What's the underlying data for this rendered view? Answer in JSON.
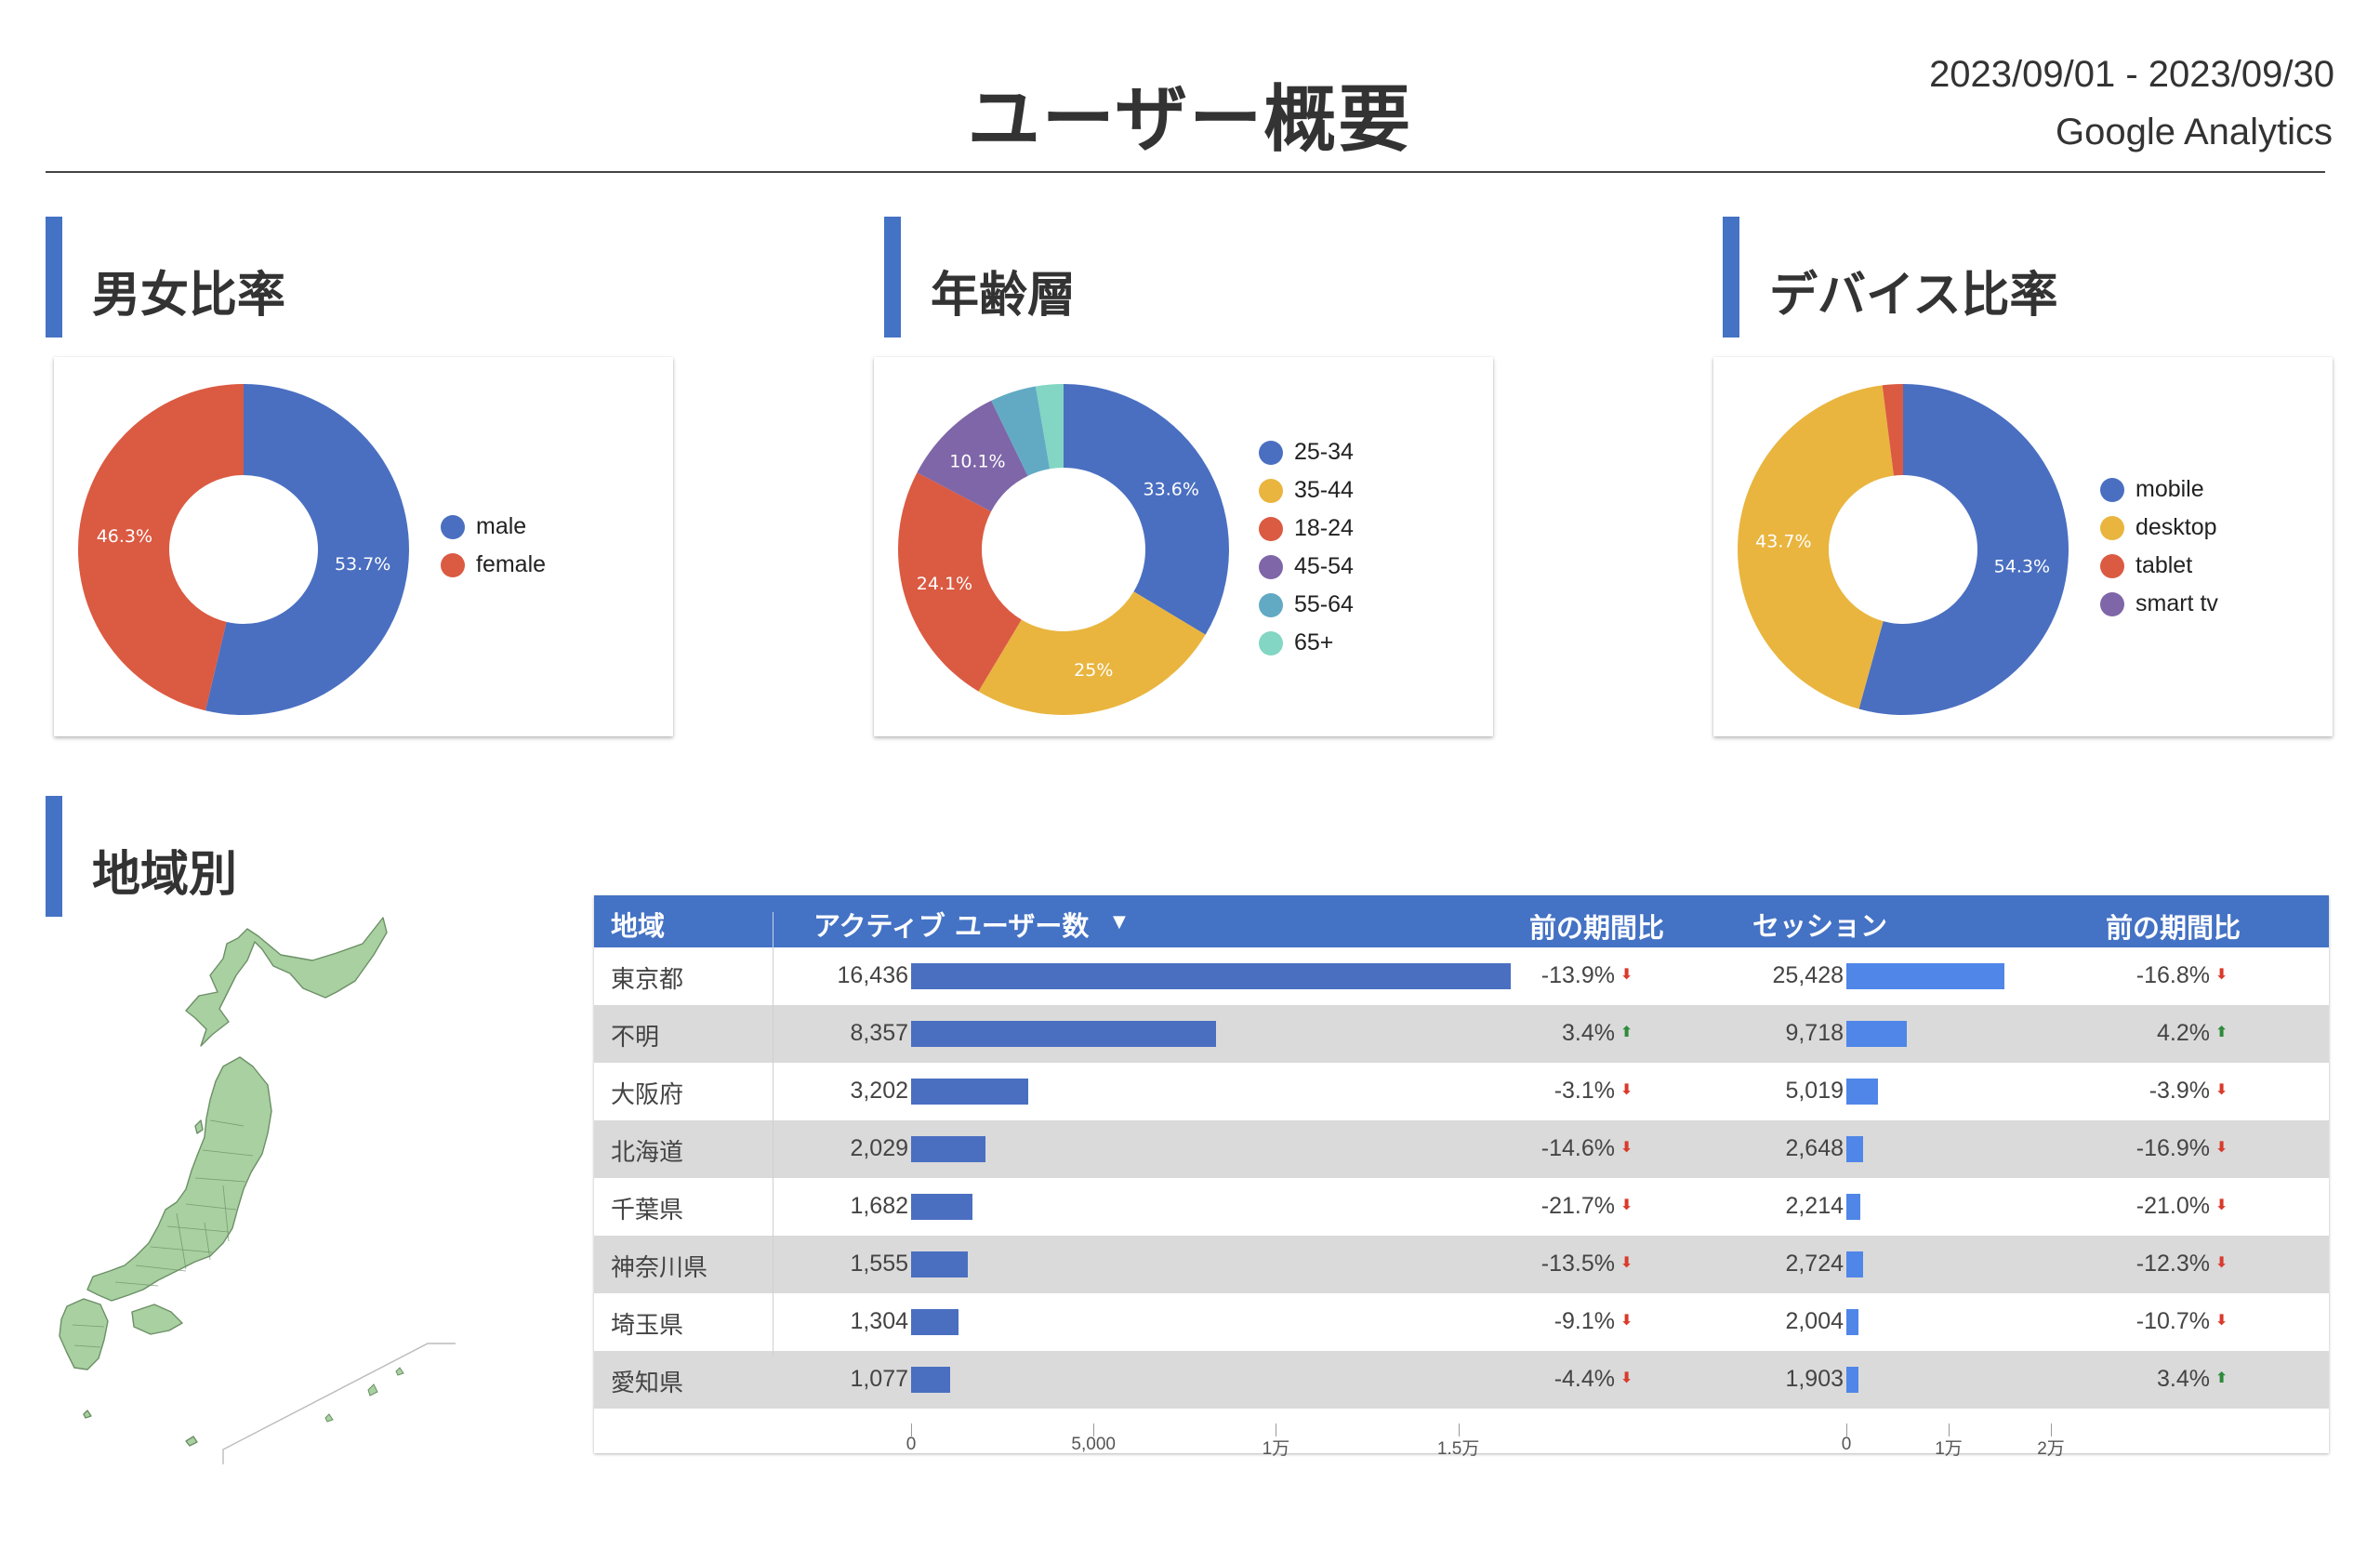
{
  "header": {
    "title": "ユーザー概要",
    "date_range": "2023/09/01 - 2023/09/30",
    "data_source": "Google Analytics"
  },
  "sections": {
    "gender": "男女比率",
    "age": "年齢層",
    "device": "デバイス比率",
    "region": "地域別"
  },
  "chart_data": [
    {
      "type": "pie",
      "title": "男女比率",
      "labels": [
        "male",
        "female"
      ],
      "values": [
        53.7,
        46.3
      ],
      "value_labels": [
        "53.7%",
        "46.3%"
      ],
      "colors": [
        "#4a6fc1",
        "#db5a42"
      ],
      "legend": "right"
    },
    {
      "type": "pie",
      "title": "年齢層",
      "labels": [
        "25-34",
        "35-44",
        "18-24",
        "45-54",
        "55-64",
        "65+"
      ],
      "values": [
        33.6,
        25.0,
        24.1,
        10.1,
        4.5,
        2.7
      ],
      "value_labels": [
        "33.6%",
        "25%",
        "24.1%",
        "10.1%",
        "",
        ""
      ],
      "colors": [
        "#4a6fc1",
        "#e9b53f",
        "#db5a42",
        "#7e66a8",
        "#62aac4",
        "#82d6c3"
      ],
      "legend": "right"
    },
    {
      "type": "pie",
      "title": "デバイス比率",
      "labels": [
        "mobile",
        "desktop",
        "tablet",
        "smart tv"
      ],
      "values": [
        54.3,
        43.7,
        2.0,
        0.0
      ],
      "value_labels": [
        "54.3%",
        "43.7%",
        "",
        ""
      ],
      "colors": [
        "#4a6fc1",
        "#e9b53f",
        "#db5a42",
        "#7e66a8"
      ],
      "legend": "right"
    },
    {
      "type": "table",
      "title": "地域別",
      "columns": [
        "地域",
        "アクティブ ユーザー数",
        "前の期間比",
        "セッション",
        "前の期間比"
      ],
      "rows": [
        {
          "region": "東京都",
          "users": "16,436",
          "users_val": 16436,
          "users_change": "-13.9%",
          "users_dir": "down",
          "sessions": "25,428",
          "sessions_val": 25428,
          "sessions_change": "-16.8%",
          "sessions_dir": "down"
        },
        {
          "region": "不明",
          "users": "8,357",
          "users_val": 8357,
          "users_change": "3.4%",
          "users_dir": "up",
          "sessions": "9,718",
          "sessions_val": 9718,
          "sessions_change": "4.2%",
          "sessions_dir": "up"
        },
        {
          "region": "大阪府",
          "users": "3,202",
          "users_val": 3202,
          "users_change": "-3.1%",
          "users_dir": "down",
          "sessions": "5,019",
          "sessions_val": 5019,
          "sessions_change": "-3.9%",
          "sessions_dir": "down"
        },
        {
          "region": "北海道",
          "users": "2,029",
          "users_val": 2029,
          "users_change": "-14.6%",
          "users_dir": "down",
          "sessions": "2,648",
          "sessions_val": 2648,
          "sessions_change": "-16.9%",
          "sessions_dir": "down"
        },
        {
          "region": "千葉県",
          "users": "1,682",
          "users_val": 1682,
          "users_change": "-21.7%",
          "users_dir": "down",
          "sessions": "2,214",
          "sessions_val": 2214,
          "sessions_change": "-21.0%",
          "sessions_dir": "down"
        },
        {
          "region": "神奈川県",
          "users": "1,555",
          "users_val": 1555,
          "users_change": "-13.5%",
          "users_dir": "down",
          "sessions": "2,724",
          "sessions_val": 2724,
          "sessions_change": "-12.3%",
          "sessions_dir": "down"
        },
        {
          "region": "埼玉県",
          "users": "1,304",
          "users_val": 1304,
          "users_change": "-9.1%",
          "users_dir": "down",
          "sessions": "2,004",
          "sessions_val": 2004,
          "sessions_change": "-10.7%",
          "sessions_dir": "down"
        },
        {
          "region": "愛知県",
          "users": "1,077",
          "users_val": 1077,
          "users_change": "-4.4%",
          "users_dir": "down",
          "sessions": "1,903",
          "sessions_val": 1903,
          "sessions_change": "3.4%",
          "sessions_dir": "up"
        }
      ],
      "users_axis": {
        "ticks": [
          0,
          5000,
          10000,
          15000
        ],
        "tick_labels": [
          "0",
          "5,000",
          "1万",
          "1.5万"
        ]
      },
      "sessions_axis": {
        "ticks": [
          0,
          10000,
          20000
        ],
        "tick_labels": [
          "0",
          "1万",
          "2万"
        ]
      },
      "colors": {
        "users_bar": "#4a6fc1",
        "sessions_bar": "#4f86e8",
        "up": "#2e8b3a",
        "down": "#d93a2b",
        "header": "#4472c4",
        "alt_row": "#dadada"
      }
    }
  ],
  "table": {
    "col_region": "地域",
    "col_users": "アクティブ ユーザー数",
    "col_users_change": "前の期間比",
    "col_sessions": "セッション",
    "col_sessions_change": "前の期間比"
  },
  "map": {
    "fill": "#a8d0a0",
    "stroke": "#6c8f66"
  },
  "icons": {
    "sort": "sort-desc-icon",
    "up": "arrow-up-icon",
    "down": "arrow-down-icon"
  }
}
